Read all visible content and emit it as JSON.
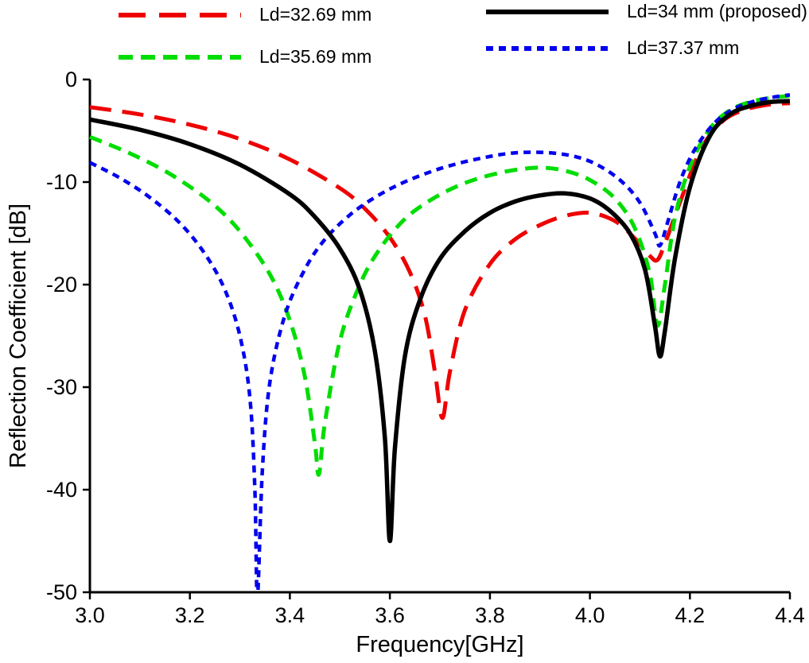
{
  "figure": {
    "background": "#ffffff",
    "axis_color": "#000000"
  },
  "chart_data": {
    "type": "line",
    "title": "",
    "xlabel": "Frequency[GHz]",
    "ylabel": "Reflection Coefficient [dB]",
    "xlim": [
      3.0,
      4.4
    ],
    "ylim": [
      -50,
      0
    ],
    "x_ticks": [
      3.0,
      3.2,
      3.4,
      3.6,
      3.8,
      4.0,
      4.2,
      4.4
    ],
    "x_tick_labels": [
      "3.0",
      "3.2",
      "3.4",
      "3.6",
      "3.8",
      "4.0",
      "4.2",
      "4.4"
    ],
    "y_ticks": [
      0,
      -10,
      -20,
      -30,
      -40,
      -50
    ],
    "y_tick_labels": [
      "0",
      "-10",
      "-20",
      "-30",
      "-40",
      "-50"
    ],
    "grid": false,
    "legend_position": "top",
    "series": [
      {
        "name": "Ld=32.69 mm",
        "color": "#ee0000",
        "dash": "long-dash",
        "width": 5,
        "points": [
          [
            3.0,
            -2.7
          ],
          [
            3.1,
            -3.4
          ],
          [
            3.2,
            -4.4
          ],
          [
            3.3,
            -5.8
          ],
          [
            3.4,
            -7.8
          ],
          [
            3.5,
            -10.6
          ],
          [
            3.55,
            -12.6
          ],
          [
            3.6,
            -15.4
          ],
          [
            3.64,
            -18.8
          ],
          [
            3.67,
            -23.0
          ],
          [
            3.69,
            -28.5
          ],
          [
            3.705,
            -33.0
          ],
          [
            3.72,
            -28.5
          ],
          [
            3.75,
            -22.5
          ],
          [
            3.8,
            -18.0
          ],
          [
            3.85,
            -15.6
          ],
          [
            3.9,
            -14.2
          ],
          [
            3.95,
            -13.3
          ],
          [
            4.0,
            -13.0
          ],
          [
            4.05,
            -13.8
          ],
          [
            4.09,
            -15.5
          ],
          [
            4.12,
            -17.2
          ],
          [
            4.135,
            -17.6
          ],
          [
            4.15,
            -16.0
          ],
          [
            4.18,
            -12.0
          ],
          [
            4.22,
            -7.0
          ],
          [
            4.26,
            -4.3
          ],
          [
            4.3,
            -3.1
          ],
          [
            4.35,
            -2.5
          ],
          [
            4.4,
            -2.3
          ]
        ]
      },
      {
        "name": "Ld=35.69 mm",
        "color": "#00dd00",
        "dash": "dash",
        "width": 5,
        "points": [
          [
            3.0,
            -5.6
          ],
          [
            3.08,
            -7.2
          ],
          [
            3.16,
            -9.2
          ],
          [
            3.24,
            -11.9
          ],
          [
            3.3,
            -14.8
          ],
          [
            3.36,
            -19.0
          ],
          [
            3.4,
            -23.5
          ],
          [
            3.43,
            -29.0
          ],
          [
            3.45,
            -35.5
          ],
          [
            3.458,
            -38.5
          ],
          [
            3.47,
            -33.5
          ],
          [
            3.5,
            -25.5
          ],
          [
            3.54,
            -20.0
          ],
          [
            3.58,
            -16.5
          ],
          [
            3.63,
            -13.6
          ],
          [
            3.68,
            -11.8
          ],
          [
            3.73,
            -10.5
          ],
          [
            3.78,
            -9.6
          ],
          [
            3.84,
            -8.9
          ],
          [
            3.9,
            -8.6
          ],
          [
            3.95,
            -8.9
          ],
          [
            4.0,
            -9.8
          ],
          [
            4.05,
            -11.6
          ],
          [
            4.09,
            -14.5
          ],
          [
            4.12,
            -19.0
          ],
          [
            4.135,
            -24.0
          ],
          [
            4.15,
            -20.0
          ],
          [
            4.17,
            -13.5
          ],
          [
            4.2,
            -8.5
          ],
          [
            4.24,
            -4.8
          ],
          [
            4.28,
            -3.0
          ],
          [
            4.32,
            -2.2
          ],
          [
            4.36,
            -1.8
          ],
          [
            4.4,
            -1.6
          ]
        ]
      },
      {
        "name": "Ld=34 mm (proposed)",
        "color": "#000000",
        "dash": "solid",
        "width": 5.5,
        "points": [
          [
            3.0,
            -3.9
          ],
          [
            3.1,
            -4.9
          ],
          [
            3.2,
            -6.3
          ],
          [
            3.3,
            -8.3
          ],
          [
            3.4,
            -11.2
          ],
          [
            3.45,
            -13.4
          ],
          [
            3.5,
            -16.5
          ],
          [
            3.54,
            -20.5
          ],
          [
            3.57,
            -26.5
          ],
          [
            3.59,
            -35.0
          ],
          [
            3.6,
            -45.0
          ],
          [
            3.61,
            -36.0
          ],
          [
            3.63,
            -27.0
          ],
          [
            3.66,
            -21.5
          ],
          [
            3.7,
            -17.5
          ],
          [
            3.75,
            -14.8
          ],
          [
            3.8,
            -13.0
          ],
          [
            3.85,
            -11.9
          ],
          [
            3.9,
            -11.3
          ],
          [
            3.95,
            -11.1
          ],
          [
            4.0,
            -11.6
          ],
          [
            4.04,
            -12.8
          ],
          [
            4.08,
            -15.0
          ],
          [
            4.11,
            -18.5
          ],
          [
            4.13,
            -24.0
          ],
          [
            4.14,
            -27.0
          ],
          [
            4.15,
            -24.5
          ],
          [
            4.17,
            -17.5
          ],
          [
            4.2,
            -10.5
          ],
          [
            4.24,
            -5.5
          ],
          [
            4.28,
            -3.4
          ],
          [
            4.32,
            -2.6
          ],
          [
            4.36,
            -2.2
          ],
          [
            4.4,
            -2.1
          ]
        ]
      },
      {
        "name": "Ld=37.37 mm",
        "color": "#0000ee",
        "dash": "short-dash",
        "width": 4.5,
        "points": [
          [
            3.0,
            -8.1
          ],
          [
            3.06,
            -9.6
          ],
          [
            3.12,
            -11.5
          ],
          [
            3.18,
            -14.0
          ],
          [
            3.23,
            -17.0
          ],
          [
            3.27,
            -20.5
          ],
          [
            3.3,
            -25.0
          ],
          [
            3.32,
            -31.0
          ],
          [
            3.33,
            -40.0
          ],
          [
            3.335,
            -50.5
          ],
          [
            3.345,
            -38.0
          ],
          [
            3.36,
            -29.5
          ],
          [
            3.39,
            -23.0
          ],
          [
            3.43,
            -18.5
          ],
          [
            3.47,
            -15.6
          ],
          [
            3.52,
            -13.2
          ],
          [
            3.57,
            -11.5
          ],
          [
            3.62,
            -10.2
          ],
          [
            3.67,
            -9.2
          ],
          [
            3.72,
            -8.4
          ],
          [
            3.78,
            -7.7
          ],
          [
            3.84,
            -7.2
          ],
          [
            3.9,
            -7.1
          ],
          [
            3.96,
            -7.4
          ],
          [
            4.01,
            -8.2
          ],
          [
            4.06,
            -9.8
          ],
          [
            4.1,
            -12.0
          ],
          [
            4.13,
            -15.0
          ],
          [
            4.14,
            -16.2
          ],
          [
            4.155,
            -14.0
          ],
          [
            4.18,
            -10.0
          ],
          [
            4.21,
            -6.8
          ],
          [
            4.25,
            -4.2
          ],
          [
            4.29,
            -2.8
          ],
          [
            4.33,
            -2.1
          ],
          [
            4.37,
            -1.7
          ],
          [
            4.4,
            -1.5
          ]
        ]
      }
    ]
  },
  "legend": {
    "columns": [
      {
        "items": [
          "Ld=32.69 mm",
          "Ld=35.69 mm"
        ]
      },
      {
        "items": [
          "Ld=34 mm (proposed)",
          "Ld=37.37 mm"
        ]
      }
    ]
  }
}
